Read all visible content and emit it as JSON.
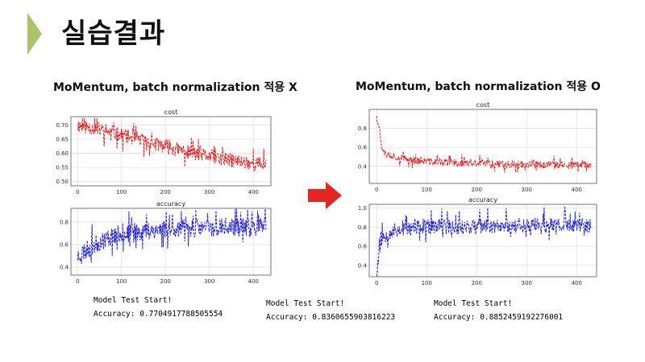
{
  "page": {
    "title": "실습결과",
    "accent": "#a9c46b"
  },
  "left": {
    "heading": "MoMentum,  batch normalization 적용 X",
    "test_label": "Model Test Start!",
    "accuracy_text": "Accuracy: 0.7704917788505554"
  },
  "right": {
    "heading": "MoMentum,  batch normalization 적용 O",
    "test_label_1": "Model Test Start!",
    "accuracy_text_1": "Accuracy: 0.8360655903816223",
    "test_label_2": "Model Test Start!",
    "accuracy_text_2": "Accuracy: 0.8852459192276001"
  },
  "arrow_color": "#e3261f",
  "chart_data": [
    {
      "id": "left-cost",
      "type": "line",
      "title": "cost",
      "color": "#e02020",
      "xlim": [
        -15,
        440
      ],
      "ylim": [
        0.485,
        0.73
      ],
      "xticks": [
        0,
        100,
        200,
        300,
        400
      ],
      "yticks": [
        0.5,
        0.55,
        0.6,
        0.65,
        0.7
      ],
      "ytick_labels": [
        "0.50",
        "0.55",
        "0.60",
        "0.65",
        "0.70"
      ],
      "n_points": 430,
      "series": [
        {
          "x": [
            0,
            50,
            100,
            150,
            200,
            250,
            300,
            350,
            400,
            428
          ],
          "y": [
            0.7,
            0.685,
            0.665,
            0.645,
            0.625,
            0.605,
            0.59,
            0.575,
            0.565,
            0.56
          ]
        }
      ]
    },
    {
      "id": "left-accuracy",
      "type": "line",
      "title": "accuracy",
      "color": "#2020dd",
      "xlim": [
        -15,
        440
      ],
      "ylim": [
        0.33,
        0.92
      ],
      "xticks": [
        0,
        100,
        200,
        300,
        400
      ],
      "yticks": [
        0.4,
        0.6,
        0.8
      ],
      "ytick_labels": [
        "0.4",
        "0.6",
        "0.8"
      ],
      "n_points": 430,
      "series": [
        {
          "x": [
            0,
            25,
            50,
            75,
            100,
            150,
            200,
            300,
            428
          ],
          "y": [
            0.5,
            0.57,
            0.62,
            0.67,
            0.7,
            0.72,
            0.74,
            0.75,
            0.76
          ]
        }
      ]
    },
    {
      "id": "right-cost",
      "type": "line",
      "title": "cost",
      "color": "#e02020",
      "xlim": [
        -15,
        440
      ],
      "ylim": [
        0.22,
        1.0
      ],
      "xticks": [
        0,
        100,
        200,
        300,
        400
      ],
      "yticks": [
        0.4,
        0.6,
        0.8
      ],
      "ytick_labels": [
        "0.4",
        "0.6",
        "0.8"
      ],
      "n_points": 430,
      "series": [
        {
          "x": [
            0,
            5,
            10,
            20,
            50,
            100,
            200,
            300,
            428
          ],
          "y": [
            0.95,
            0.8,
            0.6,
            0.53,
            0.48,
            0.45,
            0.43,
            0.42,
            0.41
          ]
        }
      ]
    },
    {
      "id": "right-accuracy",
      "type": "line",
      "title": "accuracy",
      "color": "#2020dd",
      "xlim": [
        -15,
        440
      ],
      "ylim": [
        0.28,
        1.04
      ],
      "xticks": [
        0,
        100,
        200,
        300,
        400
      ],
      "yticks": [
        0.4,
        0.6,
        0.8,
        1.0
      ],
      "ytick_labels": [
        "0.4",
        "0.6",
        "0.8",
        "1.0"
      ],
      "n_points": 430,
      "series": [
        {
          "x": [
            0,
            5,
            10,
            20,
            50,
            100,
            200,
            300,
            428
          ],
          "y": [
            0.33,
            0.55,
            0.68,
            0.74,
            0.78,
            0.8,
            0.81,
            0.82,
            0.82
          ]
        }
      ]
    }
  ]
}
